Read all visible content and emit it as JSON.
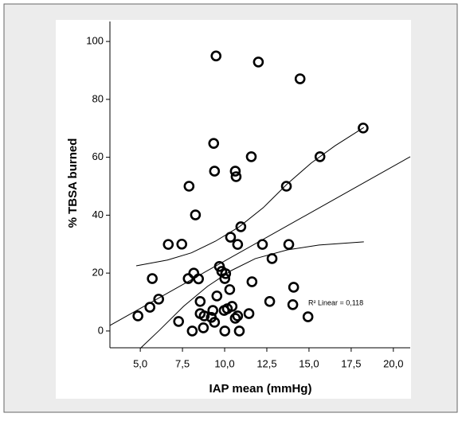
{
  "chart_data": {
    "type": "scatter",
    "xlabel": "IAP mean (mmHg)",
    "ylabel": "% TBSA burned",
    "annotation": "R² Linear = 0,118",
    "color": "#000000",
    "xlim": [
      3.2,
      21.0
    ],
    "ylim": [
      -5.8,
      106.9
    ],
    "xticks": [
      {
        "value": 5,
        "label": "5,0"
      },
      {
        "value": 7.5,
        "label": "7,5"
      },
      {
        "value": 10,
        "label": "10,0"
      },
      {
        "value": 12.5,
        "label": "12,5"
      },
      {
        "value": 15,
        "label": "15,0"
      },
      {
        "value": 17.5,
        "label": "17,5"
      },
      {
        "value": 20,
        "label": "20,0"
      }
    ],
    "yticks": [
      0,
      20,
      40,
      60,
      80,
      100
    ],
    "x": [
      4.86,
      5.57,
      5.71,
      6.09,
      6.66,
      7.27,
      7.46,
      7.89,
      7.84,
      8.08,
      8.17,
      8.27,
      8.45,
      8.55,
      8.55,
      8.79,
      8.74,
      9.35,
      9.4,
      9.49,
      9.21,
      9.3,
      9.4,
      9.54,
      9.69,
      9.83,
      10.01,
      10.06,
      9.97,
      10.01,
      10.16,
      10.3,
      10.35,
      10.44,
      10.63,
      10.63,
      10.68,
      10.77,
      10.77,
      10.87,
      10.96,
      11.44,
      11.58,
      11.62,
      12.0,
      12.24,
      12.67,
      12.81,
      13.66,
      13.8,
      14.04,
      14.09,
      14.47,
      14.94,
      15.65,
      18.21
    ],
    "values": [
      5.2,
      8.2,
      18.1,
      11,
      29.9,
      3.3,
      30,
      50,
      18.1,
      0,
      20,
      40.1,
      18,
      10.2,
      6,
      5.2,
      1.1,
      64.8,
      55.2,
      95,
      4.7,
      7.1,
      3,
      12.1,
      22.3,
      20.6,
      18.1,
      19.8,
      7.1,
      0,
      7.7,
      14.3,
      32.4,
      8.5,
      4.4,
      55.2,
      53.3,
      29.9,
      5.2,
      0,
      36,
      6,
      60.2,
      17,
      92.9,
      29.9,
      10.2,
      25,
      50,
      29.9,
      9.1,
      15.1,
      87.1,
      4.9,
      60.2,
      70.1
    ],
    "fit": {
      "x": [
        3.2,
        21.0
      ],
      "y": [
        1.9,
        60.2
      ]
    },
    "upper": {
      "x": [
        4.76,
        6.61,
        8.03,
        9.45,
        10.87,
        12.29,
        13.71,
        15.13,
        16.55,
        18.25
      ],
      "y": [
        22.5,
        24.5,
        27,
        31,
        36,
        42.6,
        50.8,
        58,
        64,
        70.3
      ]
    },
    "lower": {
      "x": [
        5.0,
        6.14,
        7.56,
        8.98,
        10.4,
        11.82,
        13.71,
        15.6,
        18.25
      ],
      "y": [
        -6,
        0.3,
        8.5,
        15.4,
        20.9,
        25,
        28,
        29.7,
        30.8
      ]
    }
  }
}
